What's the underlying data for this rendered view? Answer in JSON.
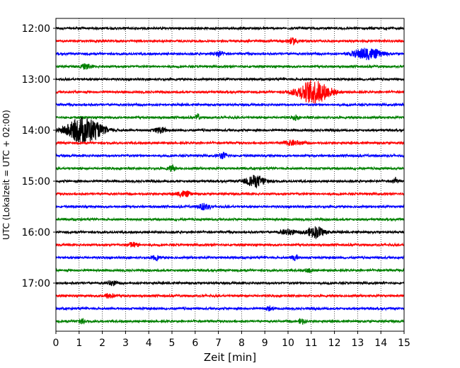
{
  "chart_data": {
    "type": "line",
    "title": "",
    "xlabel": "Zeit  [min]",
    "ylabel": "UTC (Lokalzeit = UTC + 02:00)",
    "xlim": [
      0,
      15
    ],
    "x_ticks": [
      0,
      1,
      2,
      3,
      4,
      5,
      6,
      7,
      8,
      9,
      10,
      11,
      12,
      13,
      14,
      15
    ],
    "y_tick_labels": [
      "12:00",
      "13:00",
      "14:00",
      "15:00",
      "16:00",
      "17:00"
    ],
    "grid": "vertical dotted",
    "trace_interval_min": 15,
    "start_time": "12:00",
    "trace_count": 24,
    "colors": [
      "#000000",
      "#ff0000",
      "#0000ff",
      "#008000"
    ],
    "noise_amplitude": 0.18,
    "events": [
      {
        "trace": 1,
        "t": 10.2,
        "amp": 0.5,
        "dur": 0.5
      },
      {
        "trace": 2,
        "t": 13.4,
        "amp": 1.0,
        "dur": 1.2
      },
      {
        "trace": 2,
        "t": 7.0,
        "amp": 0.5,
        "dur": 0.4
      },
      {
        "trace": 3,
        "t": 1.3,
        "amp": 0.55,
        "dur": 0.35
      },
      {
        "trace": 5,
        "t": 11.1,
        "amp": 2.0,
        "dur": 1.4
      },
      {
        "trace": 7,
        "t": 6.1,
        "amp": 0.7,
        "dur": 0.15
      },
      {
        "trace": 7,
        "t": 10.3,
        "amp": 0.45,
        "dur": 0.25
      },
      {
        "trace": 8,
        "t": 1.2,
        "amp": 2.3,
        "dur": 1.5
      },
      {
        "trace": 8,
        "t": 4.5,
        "amp": 0.5,
        "dur": 0.5
      },
      {
        "trace": 9,
        "t": 10.2,
        "amp": 0.4,
        "dur": 0.8
      },
      {
        "trace": 10,
        "t": 7.2,
        "amp": 0.5,
        "dur": 0.4
      },
      {
        "trace": 11,
        "t": 5.0,
        "amp": 0.45,
        "dur": 0.3
      },
      {
        "trace": 12,
        "t": 8.6,
        "amp": 0.95,
        "dur": 0.9
      },
      {
        "trace": 12,
        "t": 14.6,
        "amp": 0.65,
        "dur": 0.2
      },
      {
        "trace": 13,
        "t": 5.5,
        "amp": 0.5,
        "dur": 0.6
      },
      {
        "trace": 14,
        "t": 6.4,
        "amp": 0.55,
        "dur": 0.5
      },
      {
        "trace": 16,
        "t": 11.2,
        "amp": 0.95,
        "dur": 0.8
      },
      {
        "trace": 16,
        "t": 10.0,
        "amp": 0.5,
        "dur": 0.6
      },
      {
        "trace": 17,
        "t": 3.3,
        "amp": 0.45,
        "dur": 0.5
      },
      {
        "trace": 18,
        "t": 10.3,
        "amp": 0.5,
        "dur": 0.3
      },
      {
        "trace": 18,
        "t": 4.3,
        "amp": 0.4,
        "dur": 0.3
      },
      {
        "trace": 19,
        "t": 10.9,
        "amp": 0.4,
        "dur": 0.3
      },
      {
        "trace": 20,
        "t": 2.4,
        "amp": 0.4,
        "dur": 0.4
      },
      {
        "trace": 21,
        "t": 2.3,
        "amp": 0.45,
        "dur": 0.4
      },
      {
        "trace": 22,
        "t": 9.2,
        "amp": 0.4,
        "dur": 0.3
      },
      {
        "trace": 23,
        "t": 1.1,
        "amp": 0.5,
        "dur": 0.3
      },
      {
        "trace": 23,
        "t": 10.6,
        "amp": 0.45,
        "dur": 0.3
      }
    ]
  }
}
